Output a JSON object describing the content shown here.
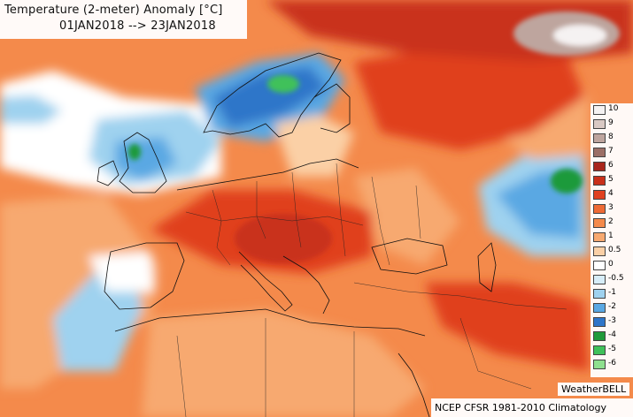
{
  "title": "Temperature (2-meter) Anomaly [°C]",
  "date_range": "01JAN2018 --> 23JAN2018",
  "credit": "WeatherBELL",
  "source": "NCEP CFSR 1981-2010 Climatology",
  "legend": [
    {
      "label": "10",
      "color": "#f5f2f2"
    },
    {
      "label": "9",
      "color": "#d9c9c4"
    },
    {
      "label": "8",
      "color": "#bea59e"
    },
    {
      "label": "7",
      "color": "#9c6f66"
    },
    {
      "label": "6",
      "color": "#a8261c"
    },
    {
      "label": "5",
      "color": "#c9301b"
    },
    {
      "label": "4",
      "color": "#e0411f"
    },
    {
      "label": "3",
      "color": "#ee6a35"
    },
    {
      "label": "2",
      "color": "#f48a4b"
    },
    {
      "label": "1",
      "color": "#f7a970"
    },
    {
      "label": "0.5",
      "color": "#fbd0a6"
    },
    {
      "label": "0",
      "color": "#ffffff"
    },
    {
      "label": "-0.5",
      "color": "#d7edf8"
    },
    {
      "label": "-1",
      "color": "#9fd2ef"
    },
    {
      "label": "-2",
      "color": "#5aa8e3"
    },
    {
      "label": "-3",
      "color": "#2f76c9"
    },
    {
      "label": "-4",
      "color": "#1f9a3a"
    },
    {
      "label": "-5",
      "color": "#3fc15a"
    },
    {
      "label": "-6",
      "color": "#8fe08f"
    }
  ]
}
